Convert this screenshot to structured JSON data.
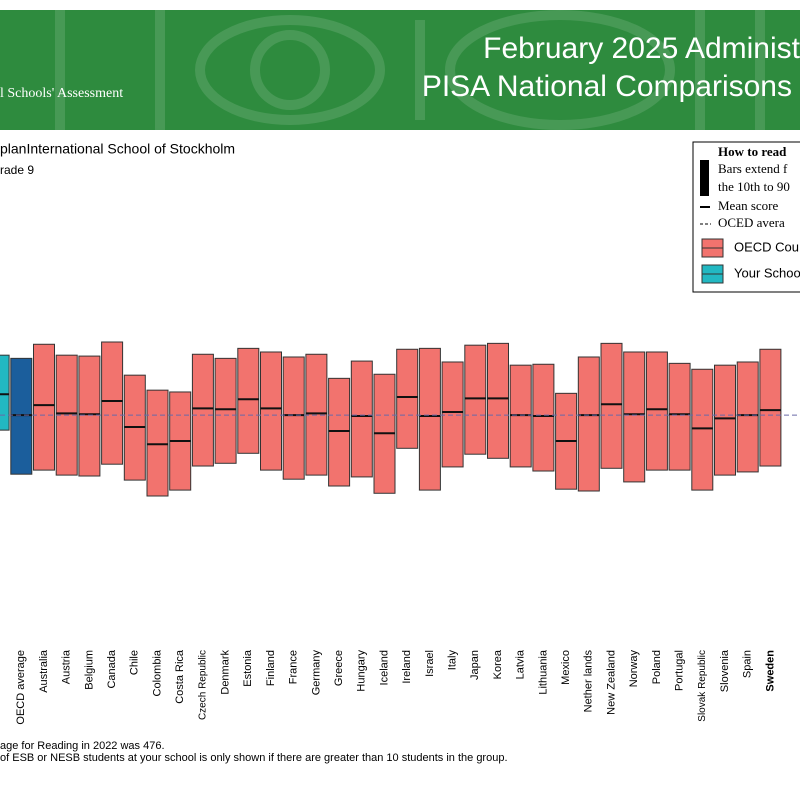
{
  "header": {
    "title_line1": "February 2025 Administ",
    "title_line2": "PISA National Comparisons",
    "org": "l Schools' Assessment"
  },
  "chart_data": {
    "type": "box",
    "subtitle": "planInternational School of Stockholm",
    "grade": "rade 9",
    "reference_value": 476,
    "legend": {
      "title": "How to read",
      "bars_line1": "Bars extend f",
      "bars_line2": "the 10th to 90",
      "mean": "Mean score",
      "oecd_avg": "OCED avera",
      "oecd_countries": "OECD Cou",
      "your_school": "Your Schoo"
    },
    "categories": [
      null,
      "OECD average",
      "Australia",
      "Austria",
      "Belgium",
      "Canada",
      "Chile",
      "Colombia",
      "Costa Rica",
      "Czech Republic",
      "Denmark",
      "Estonia",
      "Finland",
      "France",
      "Germany",
      "Greece",
      "Hungary",
      "Iceland",
      "Ireland",
      "Israel",
      "Italy",
      "Japan",
      "Korea",
      "Latvia",
      "Lithuania",
      "Mexico",
      "Nether lands",
      "New Zealand",
      "Norway",
      "Poland",
      "Portugal",
      "Slovak Republic",
      "Slovenia",
      "Spain",
      "Sweden"
    ],
    "high": [
      608,
      601,
      632,
      608,
      606,
      637,
      564,
      531,
      527,
      610,
      601,
      623,
      615,
      604,
      610,
      557,
      595,
      566,
      621,
      623,
      593,
      630,
      634,
      586,
      588,
      524,
      604,
      634,
      615,
      615,
      590,
      577,
      586,
      593,
      621
    ],
    "mean": [
      522,
      476,
      498,
      480,
      478,
      507,
      450,
      412,
      419,
      491,
      489,
      511,
      491,
      476,
      480,
      441,
      474,
      436,
      516,
      474,
      483,
      513,
      513,
      476,
      474,
      419,
      476,
      500,
      478,
      489,
      478,
      447,
      469,
      476,
      487
    ],
    "low": [
      443,
      346,
      355,
      344,
      342,
      368,
      333,
      298,
      311,
      364,
      370,
      392,
      355,
      335,
      344,
      320,
      340,
      304,
      403,
      311,
      362,
      390,
      381,
      362,
      353,
      313,
      309,
      359,
      329,
      355,
      355,
      311,
      344,
      351,
      364
    ],
    "colors": [
      "#22b8c2",
      "#1b5e9c",
      "#f2736e",
      "#f2736e",
      "#f2736e",
      "#f2736e",
      "#f2736e",
      "#f2736e",
      "#f2736e",
      "#f2736e",
      "#f2736e",
      "#f2736e",
      "#f2736e",
      "#f2736e",
      "#f2736e",
      "#f2736e",
      "#f2736e",
      "#f2736e",
      "#f2736e",
      "#f2736e",
      "#f2736e",
      "#f2736e",
      "#f2736e",
      "#f2736e",
      "#f2736e",
      "#f2736e",
      "#f2736e",
      "#f2736e",
      "#f2736e",
      "#f2736e",
      "#f2736e",
      "#f2736e",
      "#f2736e",
      "#f2736e",
      "#f2736e"
    ],
    "highlight_category": "Sweden",
    "footnote1": "age for Reading in 2022 was 476.",
    "footnote2": "of ESB or NESB students at your school is only shown if there are greater than 10 students in the group."
  }
}
